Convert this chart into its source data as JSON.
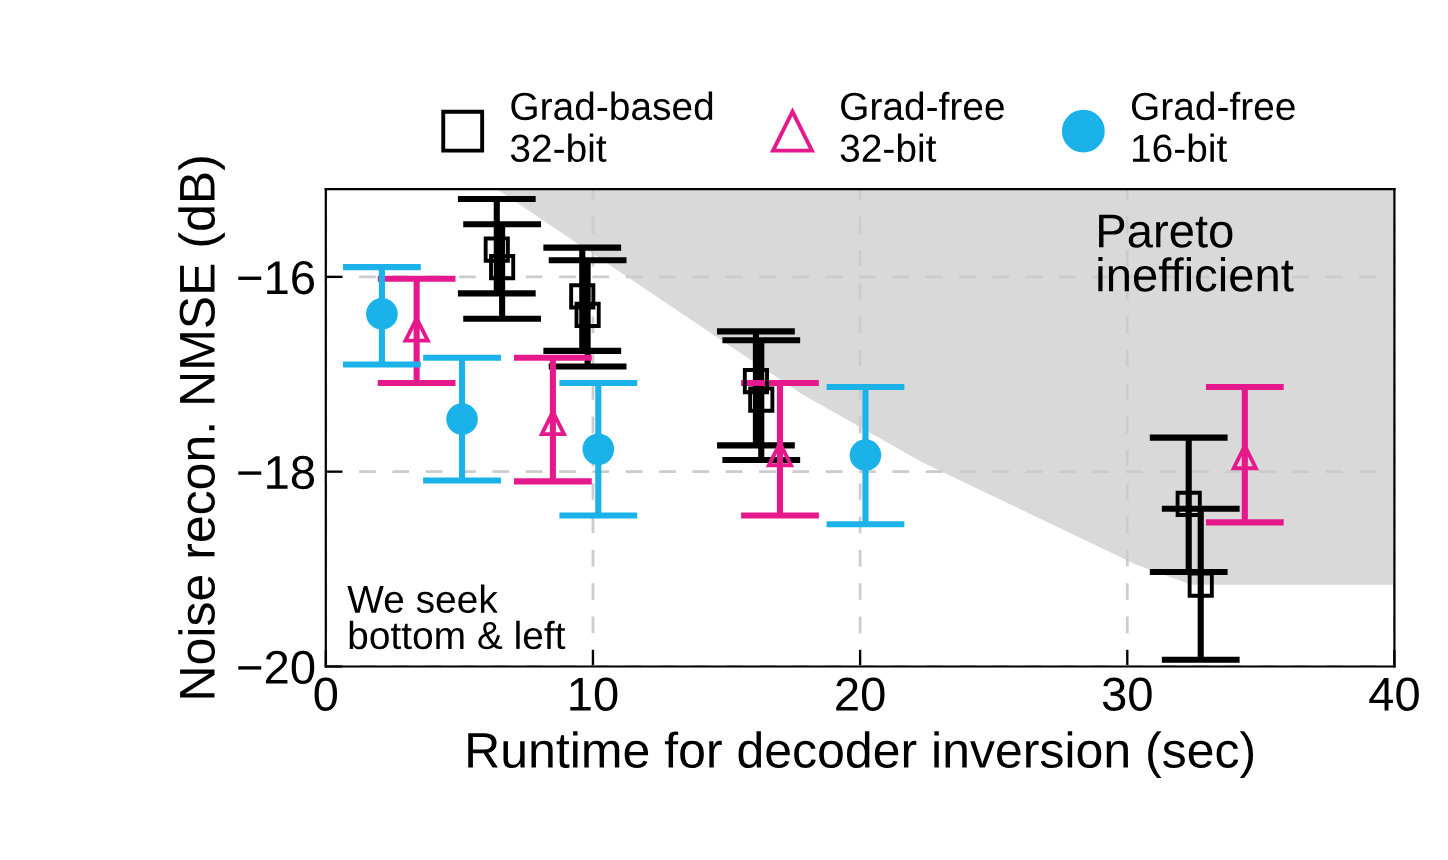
{
  "chart_data": {
    "type": "scatter",
    "xlabel": "Runtime for decoder inversion (sec)",
    "ylabel": "Noise recon. NMSE (dB)",
    "xlim": [
      0,
      40
    ],
    "xticks": [
      0,
      10,
      20,
      30,
      40
    ],
    "ylim": [
      -20,
      -15.1
    ],
    "yticks": [
      {
        "value": -20,
        "label": "−20"
      },
      {
        "value": -18,
        "label": "−18"
      },
      {
        "value": -16,
        "label": "−16"
      }
    ],
    "grid": true,
    "legend": "top",
    "annotations": [
      "Pareto\ninefficient",
      "We seek\nbottom & left"
    ],
    "series": [
      {
        "type": "area",
        "color": "#d9d9d9",
        "x": [
          6.4,
          17.8,
          22.3,
          30.3,
          32.4,
          40
        ],
        "values": [
          -15.1,
          -17.2,
          -17.9,
          -18.95,
          -19.16,
          -19.16
        ]
      },
      {
        "name": "Grad-based\n32-bit",
        "color": "#000000",
        "marker": "square",
        "x": [
          6.4,
          6.6,
          9.6,
          9.8,
          16.1,
          16.3,
          32.3,
          32.75
        ],
        "values": [
          -15.72,
          -15.9,
          -16.2,
          -16.39,
          -17.07,
          -17.26,
          -18.33,
          -19.16
        ],
        "errors": [
          [
            -16.17,
            -15.2
          ],
          [
            -16.43,
            -15.46
          ],
          [
            -16.76,
            -15.7
          ],
          [
            -16.92,
            -15.83
          ],
          [
            -17.73,
            -16.56
          ],
          [
            -17.88,
            -16.65
          ],
          [
            -19.03,
            -17.65
          ],
          [
            -19.93,
            -18.38
          ]
        ]
      },
      {
        "name": "Grad-free\n32-bit",
        "color": "#e6198c",
        "marker": "triangle",
        "x": [
          3.4,
          8.5,
          17.0,
          34.4
        ],
        "values": [
          -16.54,
          -17.5,
          -17.82,
          -17.85
        ],
        "errors": [
          [
            -17.09,
            -16.02
          ],
          [
            -18.1,
            -16.83
          ],
          [
            -18.45,
            -17.09
          ],
          [
            -18.52,
            -17.13
          ]
        ]
      },
      {
        "name": "Grad-free\n16-bit",
        "color": "#1ab2e8",
        "marker": "circle",
        "x": [
          2.1,
          5.1,
          10.2,
          20.2
        ],
        "values": [
          -16.38,
          -17.46,
          -17.77,
          -17.83
        ],
        "errors": [
          [
            -16.9,
            -15.9
          ],
          [
            -18.09,
            -16.83
          ],
          [
            -18.45,
            -17.09
          ],
          [
            -18.54,
            -17.13
          ]
        ]
      }
    ]
  }
}
